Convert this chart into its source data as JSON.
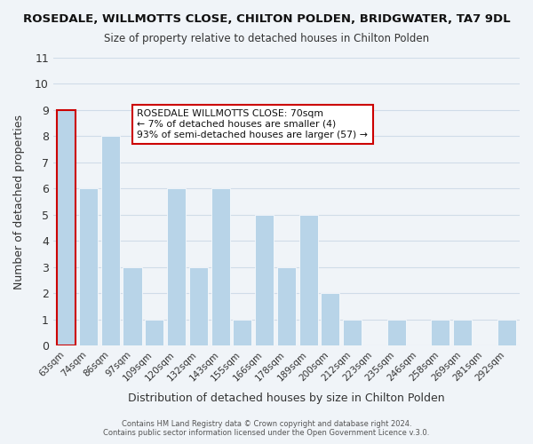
{
  "title": "ROSEDALE, WILLMOTTS CLOSE, CHILTON POLDEN, BRIDGWATER, TA7 9DL",
  "subtitle": "Size of property relative to detached houses in Chilton Polden",
  "xlabel": "Distribution of detached houses by size in Chilton Polden",
  "ylabel": "Number of detached properties",
  "footer_line1": "Contains HM Land Registry data © Crown copyright and database right 2024.",
  "footer_line2": "Contains public sector information licensed under the Open Government Licence v.3.0.",
  "bar_labels": [
    "63sqm",
    "74sqm",
    "86sqm",
    "97sqm",
    "109sqm",
    "120sqm",
    "132sqm",
    "143sqm",
    "155sqm",
    "166sqm",
    "178sqm",
    "189sqm",
    "200sqm",
    "212sqm",
    "223sqm",
    "235sqm",
    "246sqm",
    "258sqm",
    "269sqm",
    "281sqm",
    "292sqm"
  ],
  "bar_values": [
    9,
    6,
    8,
    3,
    1,
    6,
    3,
    6,
    1,
    5,
    3,
    5,
    2,
    1,
    0,
    1,
    0,
    1,
    1,
    0,
    1
  ],
  "bar_color": "#b8d4e8",
  "highlight_bar_index": 0,
  "highlight_bar_color": "#b8d4e8",
  "highlight_bar_edge_color": "#cc0000",
  "annotation_box_text_line1": "ROSEDALE WILLMOTTS CLOSE: 70sqm",
  "annotation_box_text_line2": "← 7% of detached houses are smaller (4)",
  "annotation_box_text_line3": "93% of semi-detached houses are larger (57) →",
  "annotation_box_edge_color": "#cc0000",
  "annotation_box_face_color": "#ffffff",
  "ylim": [
    0,
    11
  ],
  "yticks": [
    0,
    1,
    2,
    3,
    4,
    5,
    6,
    7,
    8,
    9,
    10,
    11
  ],
  "grid_color": "#d0dce8",
  "background_color": "#f0f4f8"
}
